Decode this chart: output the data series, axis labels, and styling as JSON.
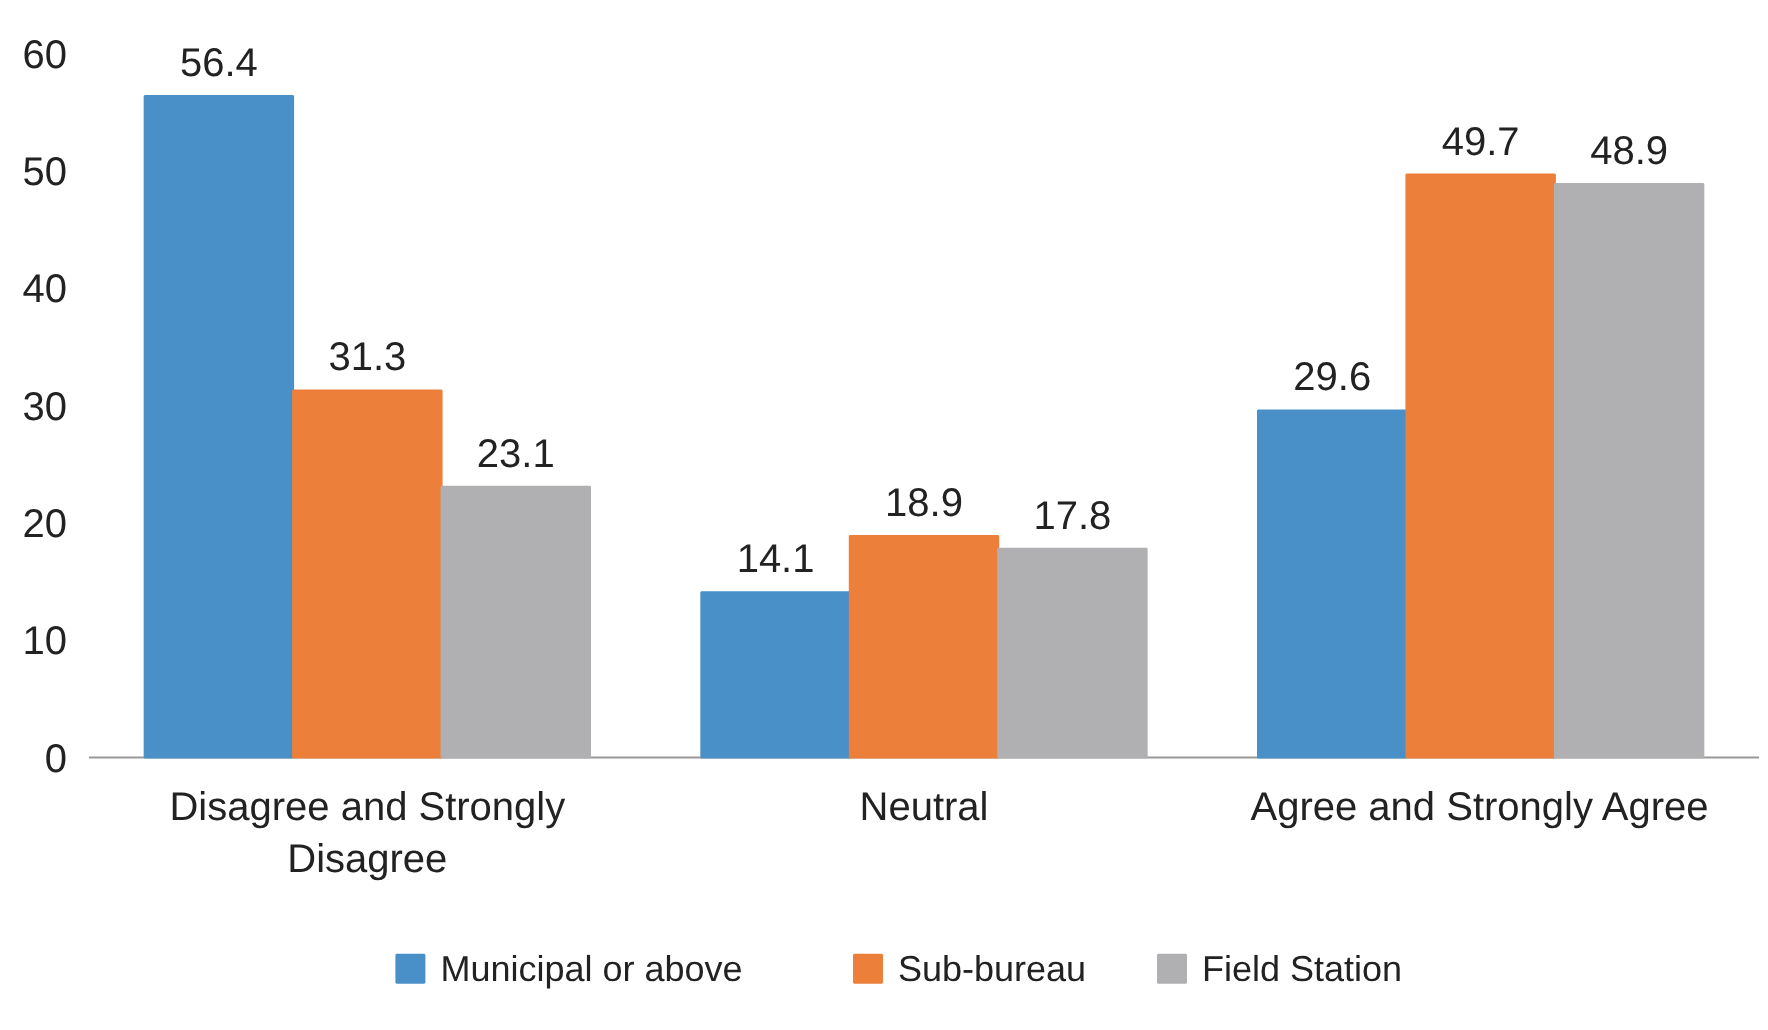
{
  "chart_data": {
    "type": "bar",
    "categories": [
      "Disagree and Strongly Disagree",
      "Neutral",
      "Agree and Strongly Agree"
    ],
    "series": [
      {
        "name": "Municipal or above",
        "color": "#4a90c8",
        "values": [
          56.4,
          14.1,
          29.6
        ]
      },
      {
        "name": "Sub-bureau",
        "color": "#ec7f3a",
        "values": [
          31.3,
          18.9,
          49.7
        ]
      },
      {
        "name": "Field Station",
        "color": "#b0b0b2",
        "values": [
          23.1,
          17.8,
          48.9
        ]
      }
    ],
    "ylim": [
      0,
      60
    ],
    "yticks": [
      0,
      10,
      20,
      30,
      40,
      50,
      60
    ],
    "grid": false,
    "legend": "bottom",
    "data_labels": true
  }
}
